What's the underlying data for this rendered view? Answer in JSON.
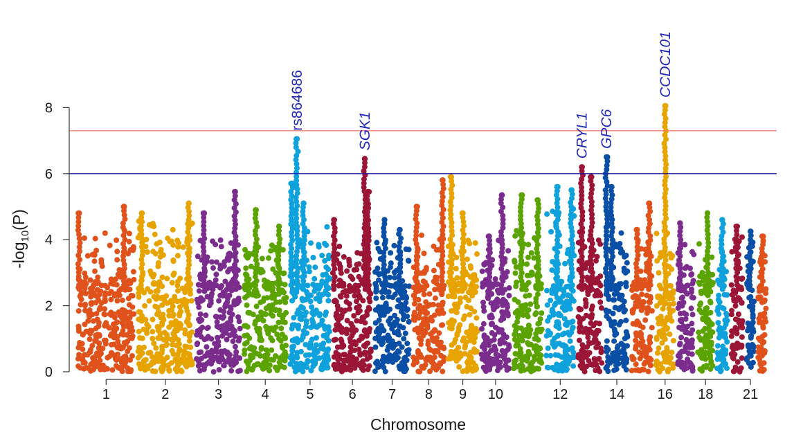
{
  "chart_data": {
    "type": "scatter",
    "subtype": "manhattan",
    "title": "",
    "xlabel": "Chromosome",
    "ylabel_parts": [
      "-log",
      "10",
      "(P)"
    ],
    "ylim": [
      0,
      8.2
    ],
    "yticks": [
      0,
      2,
      4,
      6,
      8
    ],
    "ytick_labels": [
      "0",
      "2",
      "4",
      "6",
      "8"
    ],
    "thresholds": [
      {
        "name": "genome-wide",
        "value": 7.3,
        "color": "#f08070"
      },
      {
        "name": "suggestive",
        "value": 6.0,
        "color": "#1a1aa0"
      }
    ],
    "palette": [
      "#e0521c",
      "#e7a300",
      "#7b2d8e",
      "#5aa300",
      "#0ea1dc",
      "#9b1636",
      "#0a4fa6"
    ],
    "chromosomes": [
      {
        "chr": 1,
        "size": 249,
        "max_bulk": 4.3,
        "peaks": [
          [
            0.05,
            4.8
          ],
          [
            0.8,
            5.0
          ]
        ]
      },
      {
        "chr": 2,
        "size": 243,
        "max_bulk": 4.6,
        "peaks": [
          [
            0.9,
            5.1
          ],
          [
            0.1,
            4.8
          ]
        ]
      },
      {
        "chr": 3,
        "size": 198,
        "max_bulk": 4.0,
        "peaks": [
          [
            0.85,
            5.45
          ],
          [
            0.2,
            4.8
          ]
        ]
      },
      {
        "chr": 4,
        "size": 191,
        "max_bulk": 3.9,
        "peaks": [
          [
            0.3,
            4.9
          ],
          [
            0.8,
            4.4
          ]
        ]
      },
      {
        "chr": 5,
        "size": 181,
        "max_bulk": 4.4,
        "peaks": [
          [
            0.08,
            5.7
          ],
          [
            0.2,
            7.05
          ],
          [
            0.35,
            5.1
          ]
        ]
      },
      {
        "chr": 6,
        "size": 171,
        "max_bulk": 4.0,
        "peaks": [
          [
            0.8,
            6.45
          ],
          [
            0.88,
            5.45
          ],
          [
            0.05,
            4.6
          ]
        ]
      },
      {
        "chr": 7,
        "size": 159,
        "max_bulk": 4.0,
        "peaks": [
          [
            0.3,
            4.6
          ],
          [
            0.7,
            4.3
          ]
        ]
      },
      {
        "chr": 8,
        "size": 145,
        "max_bulk": 4.2,
        "peaks": [
          [
            0.15,
            5.0
          ],
          [
            0.9,
            5.8
          ]
        ]
      },
      {
        "chr": 9,
        "size": 138,
        "max_bulk": 4.0,
        "peaks": [
          [
            0.15,
            5.9
          ],
          [
            0.5,
            4.8
          ]
        ]
      },
      {
        "chr": 10,
        "size": 134,
        "max_bulk": 4.0,
        "peaks": [
          [
            0.7,
            5.35
          ],
          [
            0.3,
            4.1
          ]
        ]
      },
      {
        "chr": 11,
        "size": 135,
        "max_bulk": 4.3,
        "peaks": [
          [
            0.3,
            5.35
          ],
          [
            0.8,
            5.2
          ]
        ]
      },
      {
        "chr": 12,
        "size": 133,
        "max_bulk": 5.0,
        "peaks": [
          [
            0.4,
            5.6
          ],
          [
            0.85,
            5.5
          ]
        ]
      },
      {
        "chr": 13,
        "size": 115,
        "max_bulk": 4.3,
        "peaks": [
          [
            0.2,
            6.2
          ],
          [
            0.55,
            5.9
          ]
        ]
      },
      {
        "chr": 14,
        "size": 107,
        "max_bulk": 4.4,
        "peaks": [
          [
            0.1,
            6.5
          ],
          [
            0.3,
            5.6
          ]
        ]
      },
      {
        "chr": 15,
        "size": 102,
        "max_bulk": 4.0,
        "peaks": [
          [
            0.8,
            5.1
          ],
          [
            0.3,
            4.3
          ]
        ]
      },
      {
        "chr": 16,
        "size": 90,
        "max_bulk": 4.3,
        "peaks": [
          [
            0.5,
            8.05
          ]
        ]
      },
      {
        "chr": 17,
        "size": 83,
        "max_bulk": 4.0,
        "peaks": [
          [
            0.2,
            4.5
          ]
        ]
      },
      {
        "chr": 18,
        "size": 80,
        "max_bulk": 4.0,
        "peaks": [
          [
            0.6,
            4.8
          ]
        ]
      },
      {
        "chr": 19,
        "size": 59,
        "max_bulk": 4.1,
        "peaks": [
          [
            0.5,
            4.6
          ]
        ]
      },
      {
        "chr": 20,
        "size": 64,
        "max_bulk": 4.1,
        "peaks": [
          [
            0.5,
            4.4
          ]
        ]
      },
      {
        "chr": 21,
        "size": 47,
        "max_bulk": 4.0,
        "peaks": [
          [
            0.5,
            4.25
          ]
        ]
      },
      {
        "chr": 22,
        "size": 51,
        "max_bulk": 4.0,
        "peaks": [
          [
            0.5,
            4.1
          ]
        ]
      }
    ],
    "xtick_chromosomes": [
      1,
      2,
      3,
      4,
      5,
      6,
      7,
      8,
      9,
      10,
      12,
      14,
      16,
      18,
      21
    ],
    "xtick_labels": [
      "1",
      "2",
      "3",
      "4",
      "5",
      "6",
      "7",
      "8",
      "9",
      "10",
      "12",
      "14",
      "16",
      "18",
      "21"
    ],
    "annotations": [
      {
        "label": "rs864686",
        "chr": 5,
        "y": 7.05,
        "style": "plain"
      },
      {
        "label": "SGK1",
        "chr": 6,
        "y": 6.45,
        "style": "italic"
      },
      {
        "label": "CRYL1",
        "chr": 13,
        "y": 6.2,
        "style": "italic"
      },
      {
        "label": "GPC6",
        "chr": 14,
        "y": 6.5,
        "style": "italic"
      },
      {
        "label": "CCDC101",
        "chr": 16,
        "y": 8.05,
        "style": "italic"
      }
    ]
  }
}
